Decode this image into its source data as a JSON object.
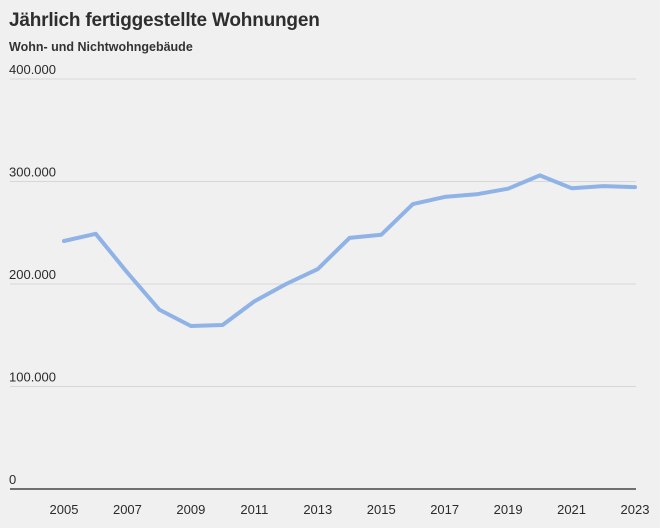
{
  "chart_data": {
    "type": "line",
    "title": "Jährlich fertiggestellte Wohnungen",
    "subtitle": "Wohn- und Nichtwohngebäude",
    "xlabel": "",
    "ylabel": "",
    "x": [
      2005,
      2006,
      2007,
      2008,
      2009,
      2010,
      2011,
      2012,
      2013,
      2014,
      2015,
      2016,
      2017,
      2018,
      2019,
      2020,
      2021,
      2022,
      2023
    ],
    "x_tick_labels": [
      "2005",
      "2007",
      "2009",
      "2011",
      "2013",
      "2015",
      "2017",
      "2019",
      "2021",
      "2023"
    ],
    "x_tick_values": [
      2005,
      2007,
      2009,
      2011,
      2013,
      2015,
      2017,
      2019,
      2021,
      2023
    ],
    "y_tick_labels": [
      "0",
      "100.000",
      "200.000",
      "300.000",
      "400.000"
    ],
    "y_tick_values": [
      0,
      100000,
      200000,
      300000,
      400000
    ],
    "xlim": [
      2005,
      2023
    ],
    "ylim": [
      0,
      400000
    ],
    "grid": true,
    "series": [
      {
        "color": "#8fb3e6",
        "values": [
          242000,
          249000,
          211000,
          175000,
          159000,
          160000,
          183000,
          200000,
          214500,
          245000,
          248000,
          278000,
          285000,
          287500,
          293000,
          306000,
          293500,
          295500,
          294500
        ]
      }
    ],
    "colors": {
      "background": "#f0f0f0",
      "grid": "#d7d7d7",
      "baseline": "#222222",
      "line": "#8fb3e6"
    }
  }
}
